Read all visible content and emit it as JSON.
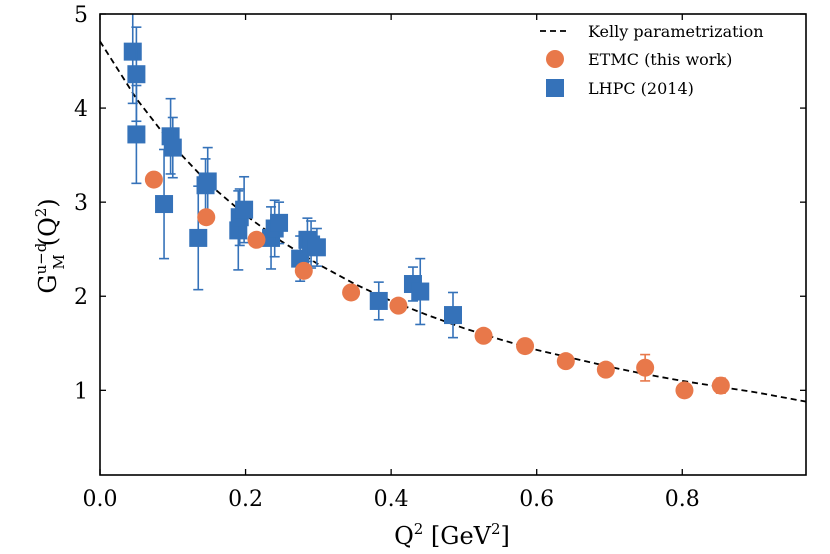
{
  "chart_data": {
    "type": "scatter",
    "xlabel": {
      "main": "Q",
      "sup": "2",
      "rest": " [GeV",
      "sup2": "2",
      "end": "]"
    },
    "ylabel": {
      "main": "G",
      "sup": "u−d",
      "sub": "M",
      "paren": "(Q",
      "psup": "2",
      "pend": ")"
    },
    "xlim": [
      0.0,
      0.97
    ],
    "ylim": [
      0.1,
      5.0
    ],
    "x_ticks": [
      0.0,
      0.2,
      0.4,
      0.6,
      0.8
    ],
    "x_tick_labels": [
      "0.0",
      "0.2",
      "0.4",
      "0.6",
      "0.8"
    ],
    "y_ticks": [
      1,
      2,
      3,
      4,
      5
    ],
    "y_tick_labels": [
      "1",
      "2",
      "3",
      "4",
      "5"
    ],
    "grid": false,
    "legend_position": "top-right",
    "series": [
      {
        "name": "Kelly parametrization",
        "kind": "line",
        "style": "dashed",
        "color": "#000000",
        "x": [
          0.0,
          0.05,
          0.1,
          0.15,
          0.2,
          0.25,
          0.3,
          0.35,
          0.4,
          0.45,
          0.5,
          0.55,
          0.6,
          0.65,
          0.7,
          0.75,
          0.8,
          0.85,
          0.9,
          0.97
        ],
        "y": [
          4.71,
          4.1,
          3.6,
          3.19,
          2.86,
          2.58,
          2.34,
          2.13,
          1.95,
          1.8,
          1.66,
          1.54,
          1.43,
          1.34,
          1.25,
          1.17,
          1.1,
          1.04,
          0.98,
          0.88
        ]
      },
      {
        "name": "ETMC (this work)",
        "kind": "scatter",
        "marker": "circle",
        "color": "#e8784a",
        "x": [
          0.074,
          0.146,
          0.215,
          0.28,
          0.345,
          0.41,
          0.527,
          0.584,
          0.64,
          0.695,
          0.749,
          0.803,
          0.853
        ],
        "y": [
          3.24,
          2.84,
          2.6,
          2.27,
          2.04,
          1.9,
          1.58,
          1.47,
          1.31,
          1.22,
          1.24,
          1.0,
          1.05
        ],
        "yerr": [
          0.06,
          0.06,
          0.06,
          0.05,
          0.04,
          0.05,
          0.05,
          0.05,
          0.05,
          0.06,
          0.14,
          0.05,
          0.08
        ]
      },
      {
        "name": "LHPC (2014)",
        "kind": "scatter",
        "marker": "square",
        "color": "#3572b9",
        "x": [
          0.045,
          0.05,
          0.05,
          0.088,
          0.097,
          0.1,
          0.135,
          0.145,
          0.148,
          0.19,
          0.192,
          0.198,
          0.235,
          0.24,
          0.246,
          0.275,
          0.285,
          0.29,
          0.298,
          0.383,
          0.43,
          0.44,
          0.485
        ],
        "y": [
          4.6,
          4.36,
          3.72,
          2.98,
          3.7,
          3.58,
          2.62,
          3.18,
          3.22,
          2.7,
          2.84,
          2.92,
          2.62,
          2.72,
          2.78,
          2.4,
          2.6,
          2.55,
          2.52,
          1.95,
          2.13,
          2.05,
          1.8
        ],
        "yerr": [
          0.55,
          0.5,
          0.52,
          0.58,
          0.4,
          0.32,
          0.55,
          0.28,
          0.36,
          0.42,
          0.3,
          0.35,
          0.33,
          0.3,
          0.22,
          0.24,
          0.23,
          0.25,
          0.2,
          0.2,
          0.18,
          0.35,
          0.24
        ]
      }
    ]
  }
}
